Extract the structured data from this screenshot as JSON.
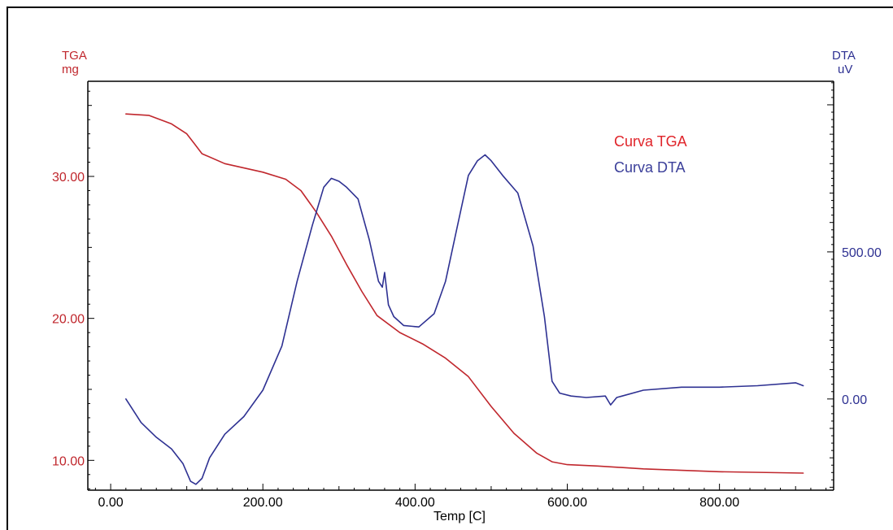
{
  "chart_data": {
    "type": "line",
    "xlabel": "Temp  [C]",
    "xlim": [
      -30,
      950
    ],
    "x_ticks": [
      "0.00",
      "200.00",
      "400.00",
      "600.00",
      "800.00"
    ],
    "x_tick_values": [
      0,
      200,
      400,
      600,
      800
    ],
    "left_axis": {
      "label_line1": "TGA",
      "label_line2": "mg",
      "ylim": [
        7.9,
        36.7
      ],
      "ticks": [
        "10.00",
        "20.00",
        "30.00"
      ],
      "tick_values": [
        10,
        20,
        30
      ],
      "color": "#c0272d"
    },
    "right_axis": {
      "label_line1": "DTA",
      "label_line2": "uV",
      "ylim": [
        -310,
        1080
      ],
      "ticks": [
        "0.00",
        "500.00"
      ],
      "tick_values": [
        0,
        500
      ],
      "color": "#2e3192"
    },
    "legend": {
      "placement": "top-right",
      "items": [
        "Curva TGA",
        "Curva DTA"
      ]
    },
    "series": [
      {
        "name": "Curva TGA",
        "axis": "left",
        "color": "#c0272d",
        "x": [
          20,
          50,
          80,
          100,
          110,
          120,
          150,
          200,
          230,
          250,
          270,
          290,
          310,
          330,
          350,
          380,
          410,
          440,
          470,
          500,
          530,
          560,
          580,
          600,
          640,
          700,
          800,
          910
        ],
        "y": [
          34.4,
          34.3,
          33.7,
          33.0,
          32.3,
          31.6,
          30.9,
          30.3,
          29.8,
          29.0,
          27.5,
          25.8,
          23.8,
          21.9,
          20.2,
          19.0,
          18.2,
          17.2,
          15.9,
          13.8,
          11.9,
          10.5,
          9.9,
          9.7,
          9.6,
          9.4,
          9.2,
          9.1
        ]
      },
      {
        "name": "Curva DTA",
        "axis": "right",
        "color": "#2e3192",
        "x": [
          20,
          40,
          60,
          80,
          95,
          105,
          112,
          120,
          130,
          150,
          175,
          200,
          225,
          245,
          265,
          280,
          290,
          300,
          310,
          325,
          340,
          352,
          357,
          360,
          365,
          372,
          385,
          405,
          425,
          440,
          455,
          470,
          482,
          492,
          500,
          515,
          535,
          555,
          570,
          580,
          590,
          605,
          625,
          650,
          657,
          665,
          700,
          750,
          800,
          850,
          900,
          910
        ],
        "y": [
          0,
          -80,
          -130,
          -170,
          -220,
          -280,
          -290,
          -270,
          -200,
          -120,
          -60,
          30,
          180,
          400,
          590,
          720,
          750,
          740,
          720,
          680,
          540,
          400,
          380,
          430,
          320,
          280,
          250,
          245,
          290,
          400,
          580,
          760,
          810,
          830,
          810,
          760,
          700,
          520,
          280,
          60,
          20,
          10,
          5,
          10,
          -20,
          5,
          30,
          40,
          40,
          45,
          55,
          45
        ]
      }
    ]
  }
}
